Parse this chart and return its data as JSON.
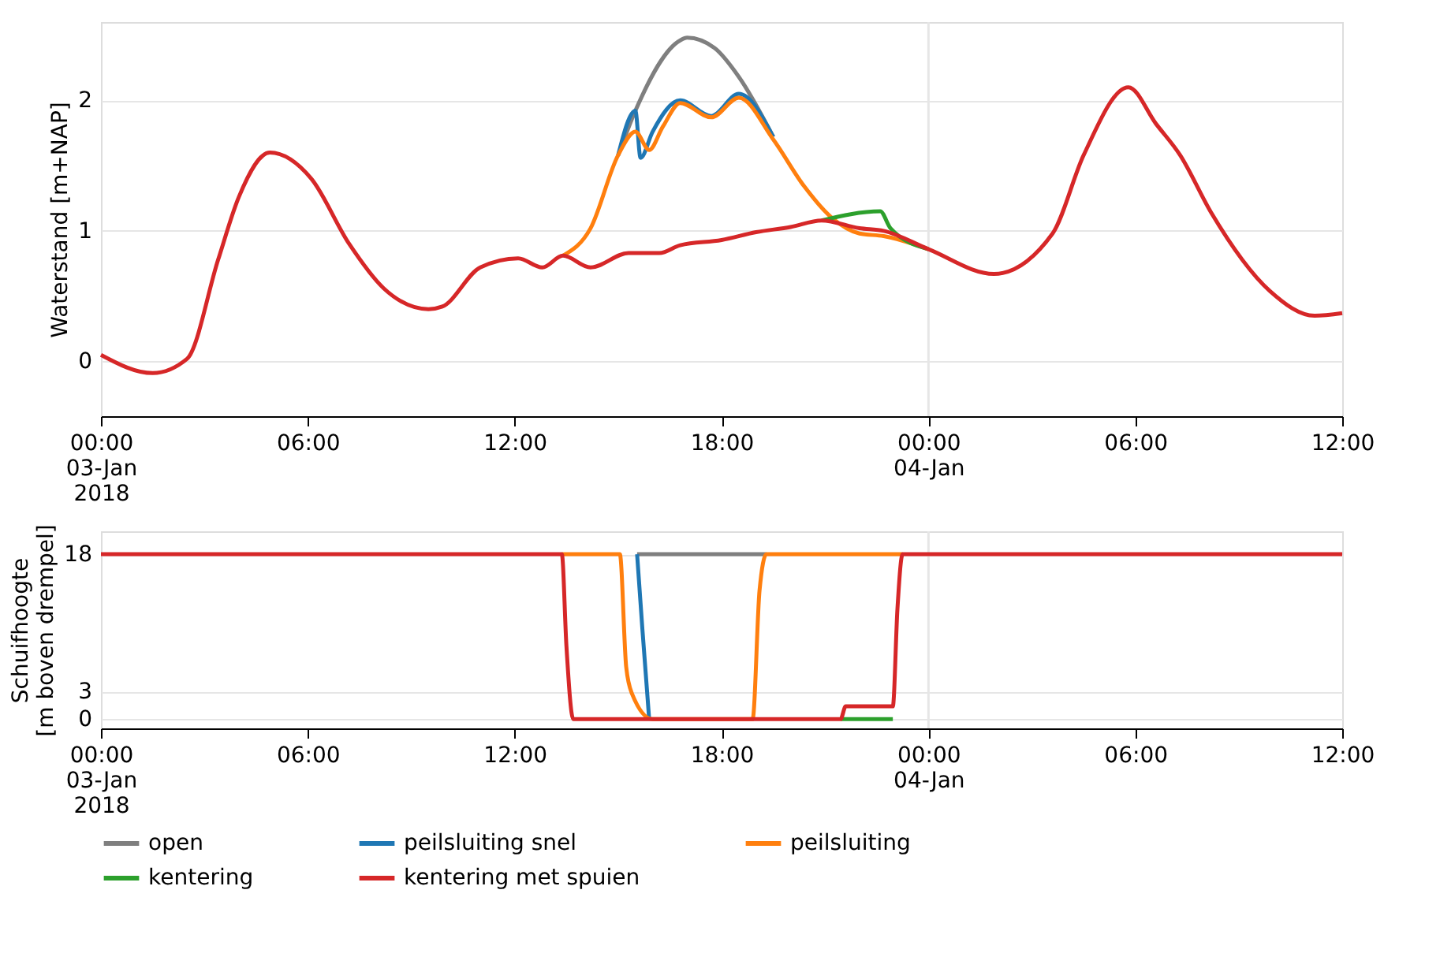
{
  "chart_data": [
    {
      "type": "line",
      "ylabel": "Waterstand [m+NAP]",
      "xlim": [
        "2018-01-03T00:00",
        "2018-01-04T12:00"
      ],
      "xticks": [
        {
          "value": "2018-01-03T00:00",
          "label": "00:00\n03-Jan\n2018"
        },
        {
          "value": "2018-01-03T06:00",
          "label": "06:00"
        },
        {
          "value": "2018-01-03T12:00",
          "label": "12:00"
        },
        {
          "value": "2018-01-03T18:00",
          "label": "18:00"
        },
        {
          "value": "2018-01-04T00:00",
          "label": "00:00\n04-Jan"
        },
        {
          "value": "2018-01-04T06:00",
          "label": "06:00"
        },
        {
          "value": "2018-01-04T12:00",
          "label": "12:00"
        }
      ],
      "ylim": [
        -0.42,
        2.6
      ],
      "yticks": [
        0,
        1,
        2
      ],
      "grid": "y",
      "legend": false,
      "line_style": "solid",
      "marker": "none",
      "ref_lines": [
        {
          "axis": "x",
          "value": "2018-01-04T00:00",
          "color": "#e6e6e6"
        }
      ],
      "series": [
        {
          "color": "#7f7f7f",
          "x": [
            "2018-01-03T15:00",
            "2018-01-03T15:30",
            "2018-01-03T16:48",
            "2018-01-03T17:00",
            "2018-01-03T17:48",
            "2018-01-03T18:30",
            "2018-01-03T19:30"
          ],
          "values": [
            1.58,
            1.92,
            2.46,
            2.48,
            2.4,
            2.18,
            1.72
          ]
        },
        {
          "color": "#1f77b4",
          "x": [
            "2018-01-03T15:00",
            "2018-01-03T15:30",
            "2018-01-03T15:39",
            "2018-01-03T16:00",
            "2018-01-03T16:48",
            "2018-01-03T17:42",
            "2018-01-03T18:30",
            "2018-01-03T19:30"
          ],
          "values": [
            1.58,
            1.92,
            1.56,
            1.76,
            2.0,
            1.88,
            2.05,
            1.72
          ]
        },
        {
          "color": "#ff7f0e",
          "x": [
            "2018-01-03T13:24",
            "2018-01-03T14:12",
            "2018-01-03T15:00",
            "2018-01-03T15:30",
            "2018-01-03T15:54",
            "2018-01-03T16:18",
            "2018-01-03T16:48",
            "2018-01-03T17:42",
            "2018-01-03T18:30",
            "2018-01-03T19:30",
            "2018-01-03T20:24",
            "2018-01-03T21:12",
            "2018-01-03T22:00",
            "2018-01-03T22:42",
            "2018-01-04T00:00"
          ],
          "values": [
            0.81,
            1.02,
            1.58,
            1.76,
            1.62,
            1.8,
            1.98,
            1.87,
            2.02,
            1.7,
            1.34,
            1.1,
            0.98,
            0.96,
            0.86
          ]
        },
        {
          "color": "#2ca02c",
          "x": [
            "2018-01-03T20:54",
            "2018-01-03T22:36",
            "2018-01-03T22:54",
            "2018-01-04T00:00"
          ],
          "values": [
            1.08,
            1.15,
            1.02,
            0.86
          ]
        },
        {
          "color": "#d62728",
          "x": [
            "2018-01-03T00:00",
            "2018-01-03T01:30",
            "2018-01-03T02:30",
            "2018-01-03T03:24",
            "2018-01-03T04:00",
            "2018-01-03T04:54",
            "2018-01-03T06:06",
            "2018-01-03T07:12",
            "2018-01-03T08:12",
            "2018-01-03T09:30",
            "2018-01-03T09:54",
            "2018-01-03T11:00",
            "2018-01-03T12:06",
            "2018-01-03T12:48",
            "2018-01-03T13:24",
            "2018-01-03T14:12",
            "2018-01-03T15:18",
            "2018-01-03T16:12",
            "2018-01-03T16:48",
            "2018-01-03T18:00",
            "2018-01-03T19:00",
            "2018-01-03T20:00",
            "2018-01-03T20:54",
            "2018-01-03T22:00",
            "2018-01-03T22:42",
            "2018-01-04T00:00",
            "2018-01-04T01:54",
            "2018-01-04T03:36",
            "2018-01-04T04:30",
            "2018-01-04T05:48",
            "2018-01-04T06:36",
            "2018-01-04T07:18",
            "2018-01-04T08:12",
            "2018-01-04T09:54",
            "2018-01-04T11:12",
            "2018-01-04T12:00"
          ],
          "values": [
            0.05,
            -0.09,
            0.02,
            0.78,
            1.26,
            1.6,
            1.4,
            0.9,
            0.56,
            0.4,
            0.42,
            0.72,
            0.79,
            0.72,
            0.81,
            0.72,
            0.83,
            0.83,
            0.89,
            0.93,
            0.99,
            1.03,
            1.08,
            1.02,
            1.0,
            0.86,
            0.67,
            0.98,
            1.58,
            2.1,
            1.82,
            1.58,
            1.14,
            0.54,
            0.35,
            0.37
          ]
        }
      ]
    },
    {
      "type": "line",
      "ylabel": "Schuifhoogte [m boven drempel]",
      "xlim": [
        "2018-01-03T00:00",
        "2018-01-04T12:00"
      ],
      "xticks": [
        {
          "value": "2018-01-03T00:00",
          "label": "00:00\n03-Jan\n2018"
        },
        {
          "value": "2018-01-03T06:00",
          "label": "06:00"
        },
        {
          "value": "2018-01-03T12:00",
          "label": "12:00"
        },
        {
          "value": "2018-01-03T18:00",
          "label": "18:00"
        },
        {
          "value": "2018-01-04T00:00",
          "label": "00:00\n04-Jan"
        },
        {
          "value": "2018-01-04T06:00",
          "label": "06:00"
        },
        {
          "value": "2018-01-04T12:00",
          "label": "12:00"
        }
      ],
      "ylim": [
        -1,
        20.5
      ],
      "yticks": [
        0,
        3,
        18
      ],
      "grid": "y",
      "legend": "bottom",
      "line_style": "solid",
      "marker": "none",
      "ref_lines": [
        {
          "axis": "x",
          "value": "2018-01-04T00:00",
          "color": "#e6e6e6"
        }
      ],
      "series": [
        {
          "name": "open",
          "color": "#7f7f7f",
          "x": [
            "2018-01-03T15:33",
            "2018-01-03T19:18"
          ],
          "values": [
            18,
            18
          ]
        },
        {
          "name": "peilsluiting snel",
          "color": "#1f77b4",
          "x": [
            "2018-01-03T15:33",
            "2018-01-03T15:42",
            "2018-01-03T15:54"
          ],
          "values": [
            18,
            10,
            0
          ]
        },
        {
          "name": "peilsluiting",
          "color": "#ff7f0e",
          "x": [
            "2018-01-03T13:22",
            "2018-01-03T15:03",
            "2018-01-03T15:14",
            "2018-01-03T15:24",
            "2018-01-03T16:00",
            "2018-01-03T18:54",
            "2018-01-03T19:06",
            "2018-01-03T19:18",
            "2018-01-03T23:15"
          ],
          "values": [
            18,
            18,
            5.7,
            2.8,
            0,
            0,
            14,
            18,
            18
          ]
        },
        {
          "name": "kentering",
          "color": "#2ca02c",
          "x": [
            "2018-01-03T21:27",
            "2018-01-03T22:58"
          ],
          "values": [
            0,
            0
          ]
        },
        {
          "name": "kentering met spuien",
          "color": "#d62728",
          "x": [
            "2018-01-03T00:00",
            "2018-01-03T13:22",
            "2018-01-03T13:30",
            "2018-01-03T13:42",
            "2018-01-03T21:27",
            "2018-01-03T21:36",
            "2018-01-03T22:58",
            "2018-01-03T23:06",
            "2018-01-03T23:15",
            "2018-01-04T12:00"
          ],
          "values": [
            18,
            18,
            8,
            0,
            0,
            1.4,
            1.4,
            12,
            18,
            18
          ]
        }
      ]
    }
  ]
}
